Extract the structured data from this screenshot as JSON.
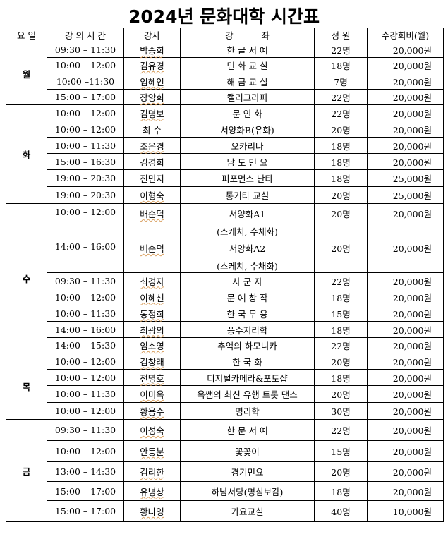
{
  "title": "2024년 문화대학 시간표",
  "headers": {
    "day": "요 일",
    "time": "강 의 시 간",
    "teacher": "강사",
    "course": "강          좌",
    "capacity": "정 원",
    "fee": "수강회비(월)"
  },
  "days": [
    {
      "day": "월",
      "rows": [
        {
          "time": "09:30 – 11:30",
          "teacher": "박종희",
          "course": "한 글 서 예",
          "capacity": "22명",
          "fee": "20,000원"
        },
        {
          "time": "10:00 – 12:00",
          "teacher": "김유경",
          "course": "민 화 교 실",
          "capacity": "18명",
          "fee": "20,000원"
        },
        {
          "time": "10:00 –11:30",
          "teacher": "임혜인",
          "course": "해 금 교 실",
          "capacity": "7명",
          "fee": "20,000원"
        },
        {
          "time": "15:00 – 17:00",
          "teacher": "장양희",
          "course": "캘리그라피",
          "capacity": "22명",
          "fee": "20,000원"
        }
      ]
    },
    {
      "day": "화",
      "rows": [
        {
          "time": "10:00 – 12:00",
          "teacher": "김명보",
          "course": "문 인 화",
          "capacity": "22명",
          "fee": "20,000원"
        },
        {
          "time": "10:00 – 12:00",
          "teacher": "최 수",
          "course": "서양화B(유화)",
          "capacity": "20명",
          "fee": "20,000원"
        },
        {
          "time": "10:00 – 11:30",
          "teacher": "조은경",
          "course": "오카리나",
          "capacity": "18명",
          "fee": "20,000원"
        },
        {
          "time": "15:00 – 16:30",
          "teacher": "김경희",
          "course": "남 도 민 요",
          "capacity": "18명",
          "fee": "20,000원"
        },
        {
          "time": "19:00 – 20:30",
          "teacher": "진민지",
          "course": "퍼포먼스 난타",
          "capacity": "18명",
          "fee": "25,000원"
        },
        {
          "time": "19:00 – 20:30",
          "teacher": "이형숙",
          "course": "통기타 교실",
          "capacity": "20명",
          "fee": "25,000원"
        }
      ]
    },
    {
      "day": "수",
      "rows": [
        {
          "time": "10:00 – 12:00",
          "teacher": "배순덕",
          "course": "서양화A1",
          "course_sub": "(스케치, 수채화)",
          "capacity": "20명",
          "fee": "20,000원"
        },
        {
          "time": "14:00 – 16:00",
          "teacher": "배순덕",
          "course": "서양화A2",
          "course_sub": "(스케치, 수채화)",
          "capacity": "20명",
          "fee": "20,000원"
        },
        {
          "time": "09:30 – 11:30",
          "teacher": "최경자",
          "course": "사 군 자",
          "capacity": "22명",
          "fee": "20,000원"
        },
        {
          "time": "10:00 – 12:00",
          "teacher": "이혜선",
          "course": "문 예 창 작",
          "capacity": "18명",
          "fee": "20,000원"
        },
        {
          "time": "10:00 – 11:30",
          "teacher": "동정희",
          "course": "한 국 무 용",
          "capacity": "15명",
          "fee": "20,000원"
        },
        {
          "time": "14:00 – 16:00",
          "teacher": "최광의",
          "course": "풍수지리학",
          "capacity": "18명",
          "fee": "20,000원"
        },
        {
          "time": "14:00 – 15:30",
          "teacher": "임소영",
          "course": "추억의 하모니카",
          "capacity": "22명",
          "fee": "20,000원"
        }
      ]
    },
    {
      "day": "목",
      "rows": [
        {
          "time": "10:00 – 12:00",
          "teacher": "김창래",
          "course": "한 국 화",
          "capacity": "20명",
          "fee": "20,000원"
        },
        {
          "time": "10:00 – 12:00",
          "teacher": "전명호",
          "course": "디지털카메라&포토샵",
          "capacity": "18명",
          "fee": "20,000원"
        },
        {
          "time": "10:00 – 11:30",
          "teacher": "이미옥",
          "course": "옥쌤의 최신 유행 트롯 댄스",
          "capacity": "20명",
          "fee": "20,000원"
        },
        {
          "time": "10:00 – 12:00",
          "teacher": "황용수",
          "course": "명리학",
          "capacity": "30명",
          "fee": "20,000원"
        }
      ]
    },
    {
      "day": "금",
      "rows": [
        {
          "time": "09:30 – 11:30",
          "teacher": "이성숙",
          "course": "한 문 서 예",
          "capacity": "22명",
          "fee": "20,000원"
        },
        {
          "time": "10:00 – 12:00",
          "teacher": "안동분",
          "course": "꽃꽂이",
          "capacity": "15명",
          "fee": "20,000원"
        },
        {
          "time": "13:00 – 14:30",
          "teacher": "김리한",
          "course": "경기민요",
          "capacity": "20명",
          "fee": "20,000원"
        },
        {
          "time": "15:00 – 17:00",
          "teacher": "유병상",
          "course": "하남서당(명심보감)",
          "capacity": "18명",
          "fee": "20,000원"
        },
        {
          "time": "15:00 – 17:00",
          "teacher": "황나영",
          "course": "가요교실",
          "capacity": "40명",
          "fee": "10,000원"
        }
      ]
    }
  ]
}
